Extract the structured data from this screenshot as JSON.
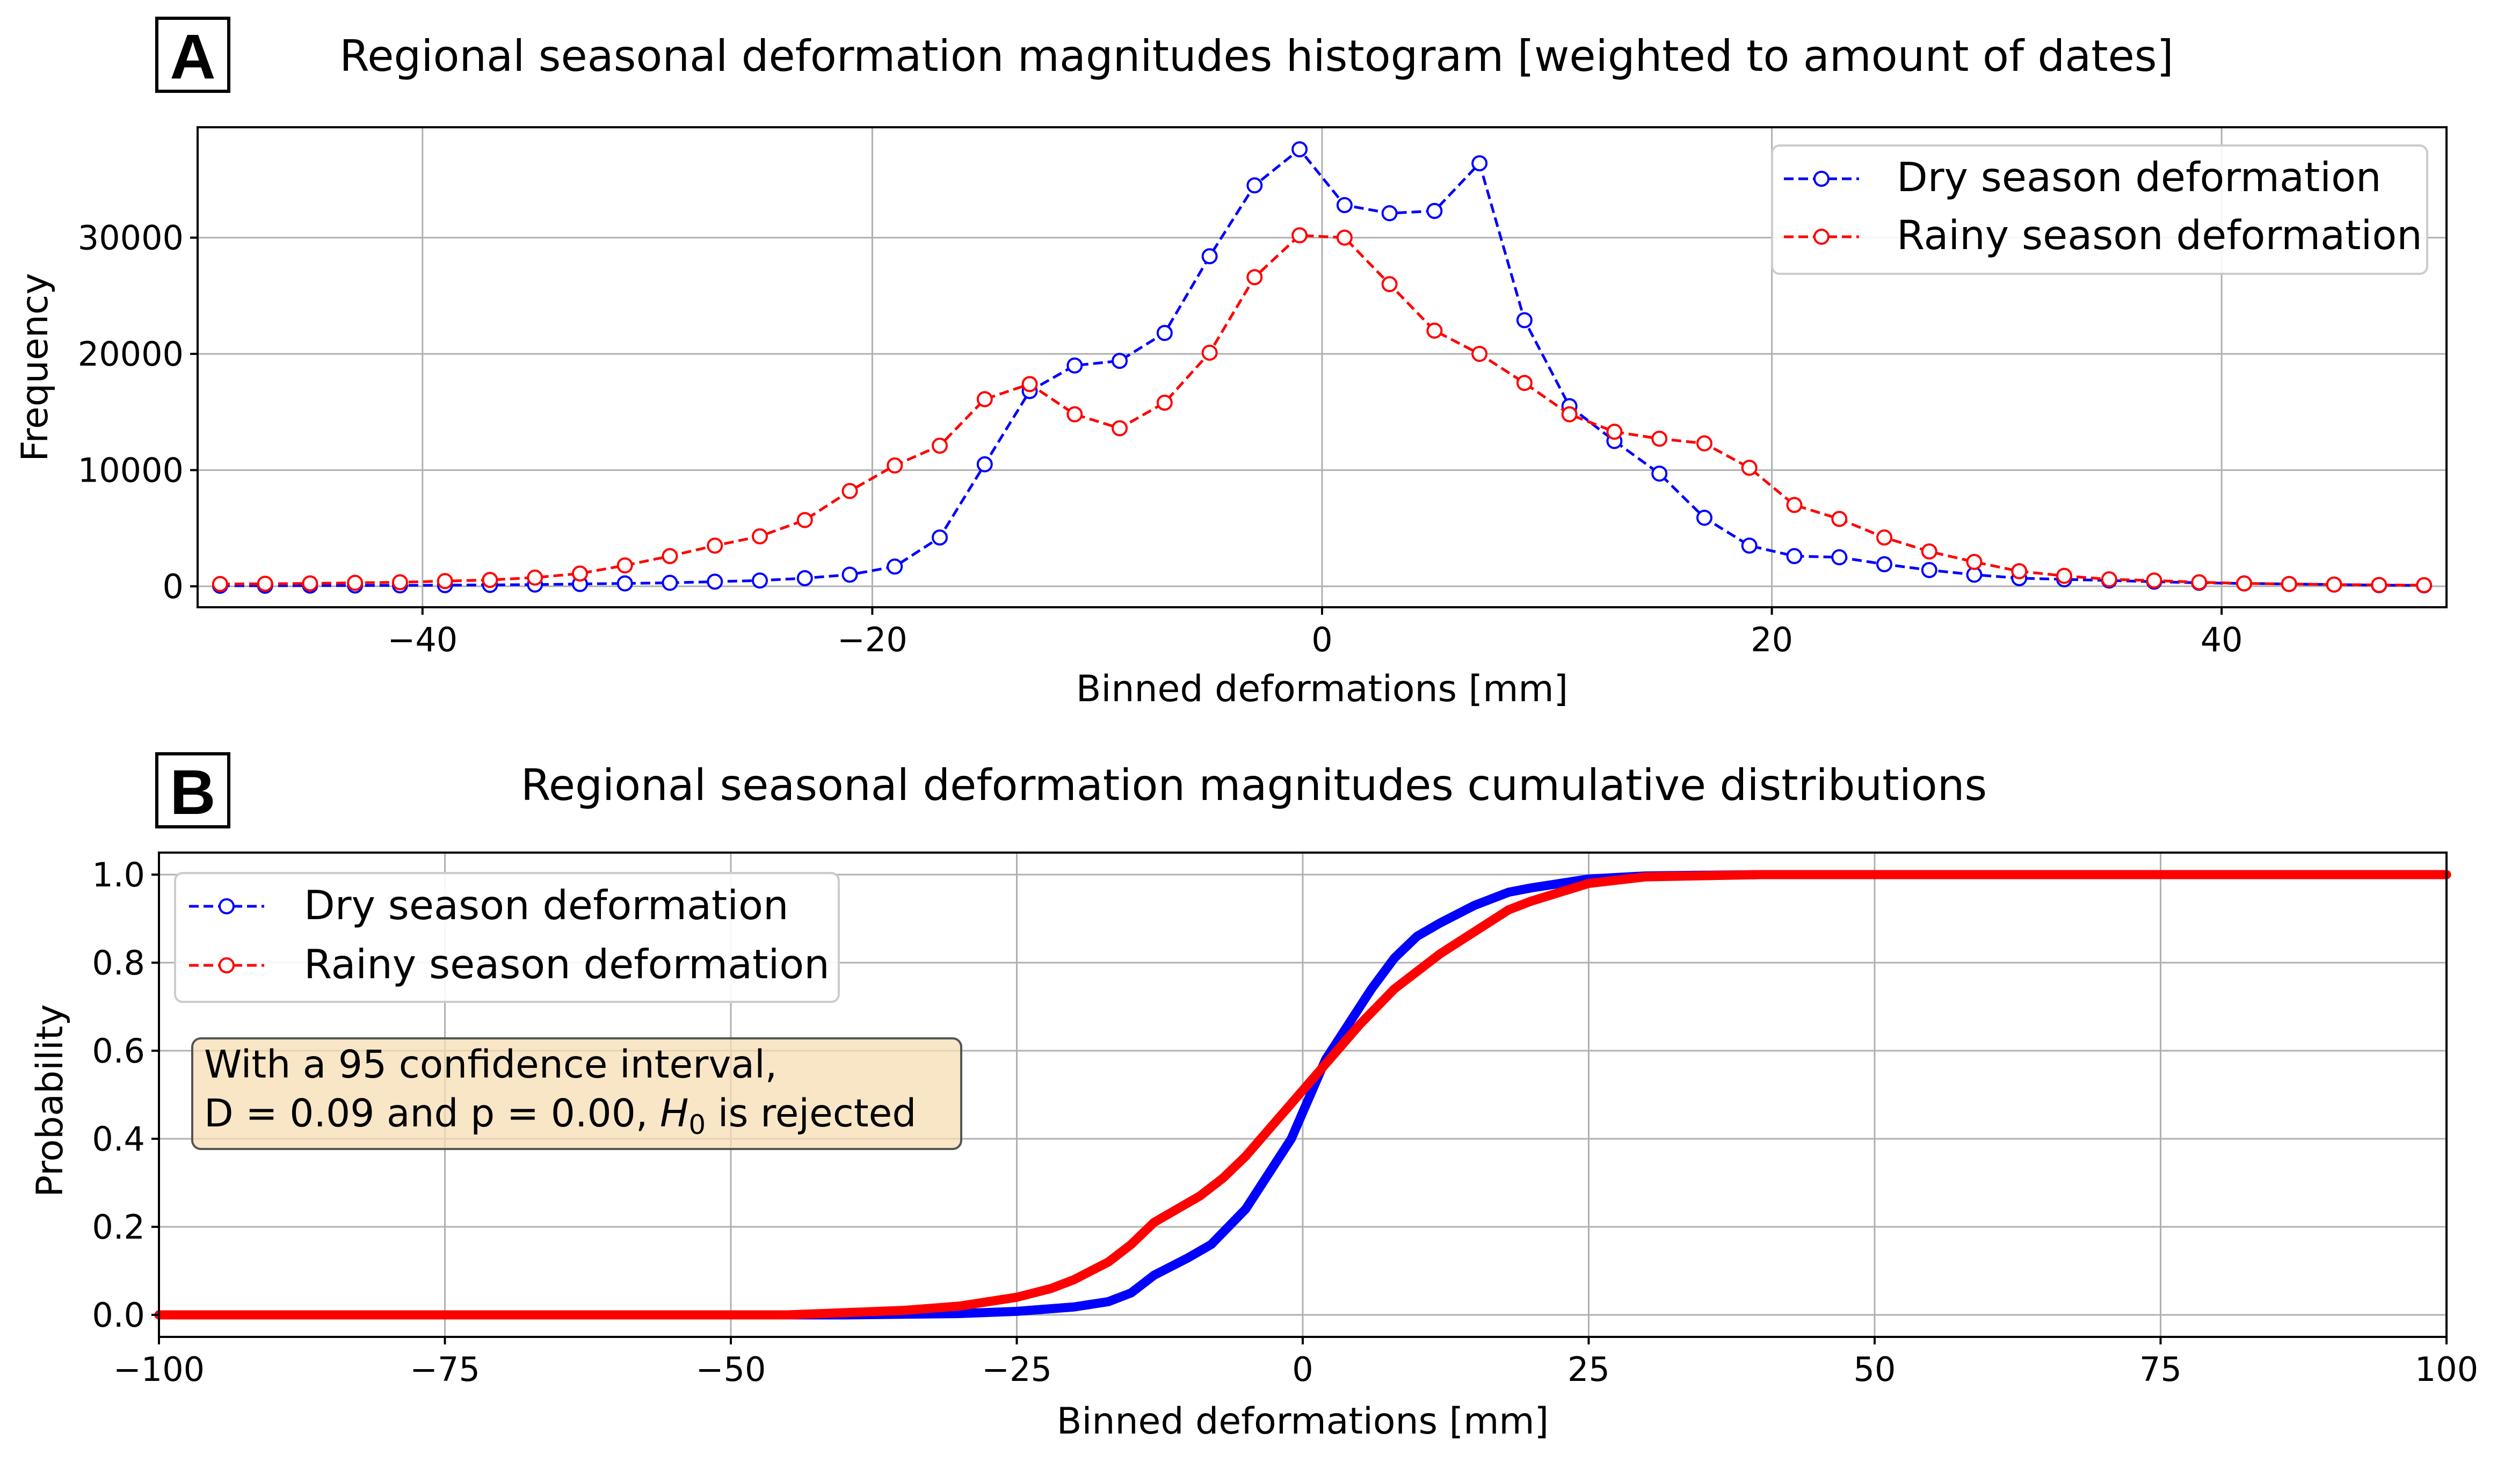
{
  "panels": {
    "a": {
      "letter": "A",
      "title": "Regional seasonal deformation magnitudes histogram [weighted to amount of dates]",
      "xlabel": "Binned deformations [mm]",
      "ylabel": "Frequency",
      "legend": [
        "Dry season deformation",
        "Rainy season deformation"
      ]
    },
    "b": {
      "letter": "B",
      "title": "Regional seasonal deformation magnitudes cumulative distributions",
      "xlabel": "Binned deformations [mm]",
      "ylabel": "Probability",
      "legend": [
        "Dry season deformation",
        "Rainy season deformation"
      ],
      "annotation_line1": "With a 95 confidence interval,",
      "annotation_line2_pre": "D = 0.09 and p = 0.00, ",
      "annotation_h": "H",
      "annotation_sub": "0",
      "annotation_line2_post": " is rejected"
    }
  },
  "chart_data": [
    {
      "type": "line",
      "title": "Regional seasonal deformation magnitudes histogram [weighted to amount of dates]",
      "xlabel": "Binned deformations [mm]",
      "ylabel": "Frequency",
      "xlim": [
        -50,
        50
      ],
      "ylim": [
        -1800,
        39500
      ],
      "xticks": [
        -40,
        -20,
        0,
        20,
        40
      ],
      "yticks": [
        0,
        10000,
        20000,
        30000
      ],
      "grid": true,
      "legend_position": "top-right",
      "x": [
        -49,
        -47,
        -45,
        -43,
        -41,
        -39,
        -37,
        -35,
        -33,
        -31,
        -29,
        -27,
        -25,
        -23,
        -21,
        -19,
        -17,
        -15,
        -13,
        -11,
        -9,
        -7,
        -5,
        -3,
        -1,
        1,
        3,
        5,
        7,
        9,
        11,
        13,
        15,
        17,
        19,
        21,
        23,
        25,
        27,
        29,
        31,
        33,
        35,
        37,
        39,
        41,
        43,
        45,
        47,
        49
      ],
      "series": [
        {
          "name": "Dry season deformation",
          "color": "#0000ff",
          "values": [
            50,
            50,
            60,
            70,
            80,
            100,
            120,
            150,
            200,
            250,
            300,
            400,
            500,
            700,
            1000,
            1700,
            4200,
            10500,
            16800,
            19000,
            19400,
            21800,
            28400,
            34500,
            37600,
            32800,
            32100,
            32300,
            36400,
            22900,
            15500,
            12500,
            9700,
            5900,
            3500,
            2600,
            2500,
            1900,
            1400,
            1000,
            700,
            600,
            500,
            400,
            300,
            250,
            200,
            150,
            100,
            80
          ]
        },
        {
          "name": "Rainy season deformation",
          "color": "#ff0000",
          "values": [
            200,
            220,
            250,
            300,
            350,
            450,
            550,
            750,
            1100,
            1800,
            2600,
            3500,
            4300,
            5700,
            8200,
            10400,
            12100,
            16100,
            17400,
            14800,
            13600,
            15800,
            20100,
            26600,
            30200,
            30000,
            26000,
            22000,
            20000,
            17500,
            14800,
            13300,
            12700,
            12300,
            10200,
            7000,
            5800,
            4200,
            3000,
            2100,
            1300,
            900,
            600,
            500,
            350,
            250,
            200,
            150,
            120,
            100
          ]
        }
      ]
    },
    {
      "type": "line",
      "title": "Regional seasonal deformation magnitudes cumulative distributions",
      "xlabel": "Binned deformations [mm]",
      "ylabel": "Probability",
      "xlim": [
        -100,
        100
      ],
      "ylim": [
        -0.05,
        1.05
      ],
      "xticks": [
        -100,
        -75,
        -50,
        -25,
        0,
        25,
        50,
        75,
        100
      ],
      "yticks": [
        0.0,
        0.2,
        0.4,
        0.6,
        0.8,
        1.0
      ],
      "grid": true,
      "legend_position": "top-left",
      "series": [
        {
          "name": "Dry season deformation",
          "color": "#0000ff",
          "x": [
            -100,
            -40,
            -30,
            -25,
            -20,
            -17,
            -15,
            -13,
            -10,
            -8,
            -5,
            -3,
            -1,
            0,
            1,
            2,
            4,
            6,
            8,
            10,
            12,
            15,
            18,
            20,
            25,
            30,
            40,
            100
          ],
          "values": [
            0.0,
            0.0,
            0.003,
            0.008,
            0.018,
            0.03,
            0.05,
            0.09,
            0.13,
            0.16,
            0.24,
            0.32,
            0.4,
            0.46,
            0.52,
            0.58,
            0.66,
            0.74,
            0.81,
            0.86,
            0.89,
            0.93,
            0.96,
            0.97,
            0.99,
            0.997,
            1.0,
            1.0
          ]
        },
        {
          "name": "Rainy season deformation",
          "color": "#ff0000",
          "x": [
            -100,
            -45,
            -40,
            -35,
            -30,
            -25,
            -22,
            -20,
            -17,
            -15,
            -13,
            -11,
            -9,
            -7,
            -5,
            -3,
            -1,
            1,
            3,
            5,
            8,
            10,
            12,
            15,
            18,
            20,
            25,
            30,
            40,
            100
          ],
          "values": [
            0.0,
            0.0,
            0.005,
            0.01,
            0.02,
            0.04,
            0.06,
            0.08,
            0.12,
            0.16,
            0.21,
            0.24,
            0.27,
            0.31,
            0.36,
            0.42,
            0.48,
            0.54,
            0.6,
            0.66,
            0.74,
            0.78,
            0.82,
            0.87,
            0.92,
            0.94,
            0.98,
            0.995,
            1.0,
            1.0
          ]
        }
      ]
    }
  ]
}
